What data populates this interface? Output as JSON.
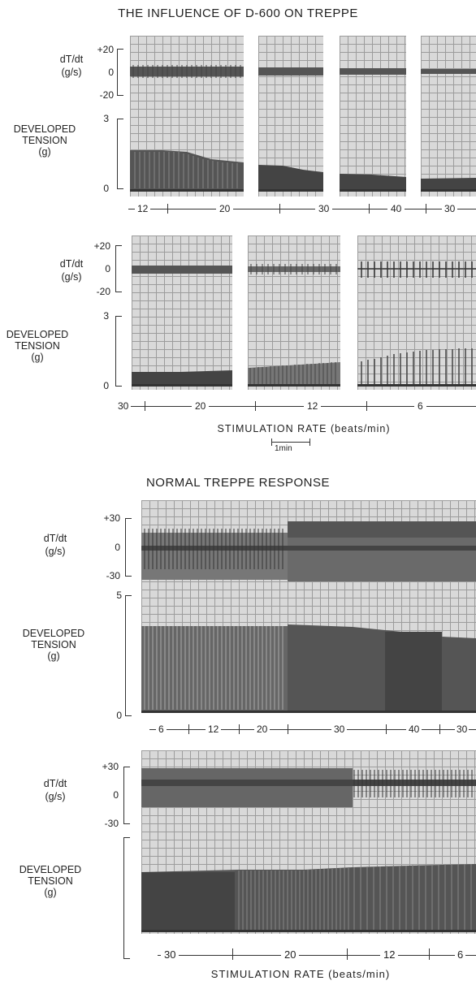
{
  "figure1": {
    "title": "THE INFLUENCE OF D-600 ON TREPPE",
    "dtdt_label": "dT/dt",
    "dtdt_units": "(g/s)",
    "dtdt_ticks": [
      "+20",
      "0",
      "-20"
    ],
    "tension_label_1": "DEVELOPED",
    "tension_label_2": "TENSION",
    "tension_units": "(g)",
    "tension_ticks": [
      "3",
      "0"
    ],
    "row1_rates": [
      "12",
      "20",
      "30",
      "40",
      "30"
    ],
    "row2_rates": [
      "30",
      "20",
      "12",
      "6"
    ],
    "xlabel": "STIMULATION RATE (beats/min)",
    "scale_bar": "1min"
  },
  "figure2": {
    "title": "NORMAL TREPPE RESPONSE",
    "dtdt_label": "dT/dt",
    "dtdt_units": "(g/s)",
    "dtdt_ticks": [
      "+30",
      "0",
      "-30"
    ],
    "tension_label_1": "DEVELOPED",
    "tension_label_2": "TENSION",
    "tension_units": "(g)",
    "tension_ticks": [
      "5",
      "0"
    ],
    "row1_rates": [
      "6",
      "12",
      "20",
      "30",
      "40",
      "30"
    ],
    "row2_rates": [
      "30",
      "20",
      "12",
      "6"
    ],
    "xlabel": "STIMULATION RATE (beats/min)"
  },
  "colors": {
    "paper": "#d9d9d9",
    "grid": "#9c9c9c",
    "trace": "#333333"
  }
}
